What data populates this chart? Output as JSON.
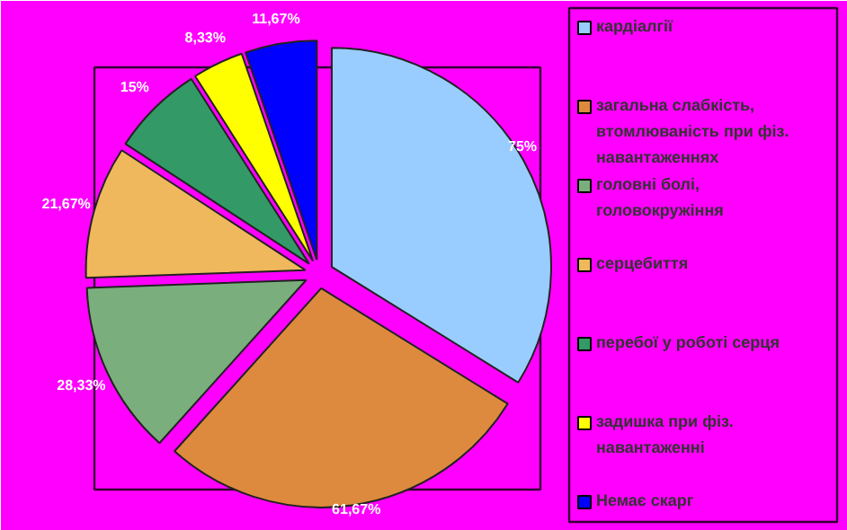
{
  "chart_data": {
    "type": "pie",
    "categories": [
      "кардіалгії",
      "загальна слабкість, втомлюваність при фіз. навантаженнях",
      "головні болі, головокружіння",
      "серцебиття",
      "перебої у роботі серця",
      "задишка при фіз. навантаженні",
      "Немає скарг"
    ],
    "values": [
      75,
      61.67,
      28.33,
      21.67,
      15,
      8.33,
      11.67
    ],
    "value_labels": [
      "75%",
      "61,67%",
      "28,33%",
      "21,67%",
      "15%",
      "8,33%",
      "11,67%"
    ],
    "colors": [
      "#99ccff",
      "#dd8a3e",
      "#7bae7d",
      "#efb85c",
      "#339966",
      "#ffff00",
      "#0000ff"
    ],
    "legend": "right"
  }
}
